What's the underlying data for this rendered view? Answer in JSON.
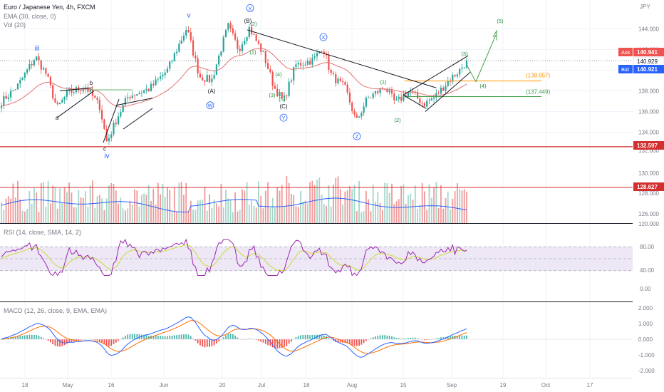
{
  "header": {
    "symbol": "Euro / Japanese Yen, 4h, FXCM",
    "ema_label": "EMA (30, close, 0)",
    "vol_label": "Vol (20)",
    "rsi_label": "RSI (14, close, SMA, 14, 2)",
    "macd_label": "MACD (12, 26, close, 9, EMA, EMA)"
  },
  "colors": {
    "up": "#26a69a",
    "down": "#ef5350",
    "ema": "#e57373",
    "volume_ma": "#2962ff",
    "rsi": "#9c27b0",
    "rsi_ma": "#cddc39",
    "macd": "#2962ff",
    "signal": "#ff6d00",
    "support": "#d32f2f",
    "trendline": "#131722",
    "orange_level": "#ff9800",
    "green_level": "#43a047",
    "wave_blue": "#2962ff",
    "wave_green": "#1b8a3a"
  },
  "chart_data": [
    {
      "type": "line",
      "name_id": "price",
      "yaxis_unit": "JPY",
      "ylim": [
        131.5,
        146.0
      ],
      "y_ticks": [
        134.0,
        136.0,
        138.0,
        140.0,
        142.0,
        144.0
      ],
      "x_ticks": [
        "18",
        "May",
        "16",
        "Jun",
        "20",
        "Jul",
        "18",
        "Aug",
        "15",
        "Sep",
        "19",
        "Oct",
        "17"
      ],
      "series_close": {
        "anchors": [
          [
            0,
            136.8
          ],
          [
            25,
            138.5
          ],
          [
            50,
            141.3
          ],
          [
            65,
            139.6
          ],
          [
            80,
            136.3
          ],
          [
            95,
            137.8
          ],
          [
            120,
            138.4
          ],
          [
            140,
            136.5
          ],
          [
            150,
            133.0
          ],
          [
            165,
            135.5
          ],
          [
            180,
            137.5
          ],
          [
            210,
            138.2
          ],
          [
            235,
            140.0
          ],
          [
            262,
            144.1
          ],
          [
            280,
            139.4
          ],
          [
            297,
            139.0
          ],
          [
            320,
            144.3
          ],
          [
            335,
            142.0
          ],
          [
            350,
            144.1
          ],
          [
            370,
            141.5
          ],
          [
            385,
            138.3
          ],
          [
            398,
            137.0
          ],
          [
            415,
            140.5
          ],
          [
            440,
            141.0
          ],
          [
            453,
            142.3
          ],
          [
            465,
            139.5
          ],
          [
            485,
            138.2
          ],
          [
            500,
            135.0
          ],
          [
            515,
            137.2
          ],
          [
            540,
            138.4
          ],
          [
            555,
            136.8
          ],
          [
            575,
            138.0
          ],
          [
            595,
            136.7
          ],
          [
            610,
            137.4
          ],
          [
            630,
            139.0
          ],
          [
            645,
            140.0
          ],
          [
            655,
            140.9
          ]
        ]
      },
      "ema": "EMA (30, close, 0)",
      "levels": [
        {
          "id": "last-price",
          "value": 140.929,
          "label": "140.929"
        },
        {
          "id": "ask",
          "value": 140.941,
          "label": "140.941",
          "tag": "Ask"
        },
        {
          "id": "bid",
          "value": 140.921,
          "label": "140.921",
          "tag": "Bid"
        },
        {
          "id": "support",
          "value": 132.597,
          "label": "132.597"
        },
        {
          "id": "orange",
          "value": 138.957,
          "label": "(138.957)"
        },
        {
          "id": "green",
          "value": 137.449,
          "label": "(137.449)"
        }
      ],
      "wave_labels": [
        {
          "text": "iii",
          "x": 52,
          "y": 141.9,
          "style": "blue"
        },
        {
          "text": "a",
          "x": 80,
          "y": 135.2,
          "style": "black"
        },
        {
          "text": "b",
          "x": 128,
          "y": 138.6,
          "style": "black"
        },
        {
          "text": "c",
          "x": 147,
          "y": 132.2,
          "style": "black"
        },
        {
          "text": "iv",
          "x": 150,
          "y": 131.5,
          "style": "blue"
        },
        {
          "text": "v",
          "x": 265,
          "y": 145.1,
          "style": "blue"
        },
        {
          "text": "(A)",
          "x": 297,
          "y": 137.8,
          "style": "black"
        },
        {
          "text": "W",
          "x": 295,
          "y": 136.4,
          "style": "blue-circle"
        },
        {
          "text": "X",
          "x": 351,
          "y": 145.8,
          "style": "blue-circle"
        },
        {
          "text": "(B)",
          "x": 348,
          "y": 144.6,
          "style": "black"
        },
        {
          "text": "(2)",
          "x": 356,
          "y": 144.3,
          "style": "green"
        },
        {
          "text": "(1)",
          "x": 355,
          "y": 141.6,
          "style": "green"
        },
        {
          "text": "(4)",
          "x": 391,
          "y": 139.4,
          "style": "green"
        },
        {
          "text": "(3)",
          "x": 382,
          "y": 137.4,
          "style": "green"
        },
        {
          "text": "(5)",
          "x": 396,
          "y": 137.0,
          "style": "green"
        },
        {
          "text": "(C)",
          "x": 398,
          "y": 136.3,
          "style": "black"
        },
        {
          "text": "Y",
          "x": 398,
          "y": 135.2,
          "style": "blue-circle"
        },
        {
          "text": "X",
          "x": 454,
          "y": 143.0,
          "style": "blue-circle"
        },
        {
          "text": "Z",
          "x": 501,
          "y": 133.4,
          "style": "blue-circle"
        },
        {
          "text": "(1)",
          "x": 538,
          "y": 138.7,
          "style": "green"
        },
        {
          "text": "(2)",
          "x": 558,
          "y": 135.0,
          "style": "green"
        },
        {
          "text": "(3)",
          "x": 652,
          "y": 141.4,
          "style": "green"
        },
        {
          "text": "(4)",
          "x": 678,
          "y": 138.3,
          "style": "green"
        },
        {
          "text": "(5)",
          "x": 702,
          "y": 144.6,
          "style": "green"
        }
      ]
    },
    {
      "type": "bar",
      "name_id": "volume",
      "y_ticks": [
        126.0,
        128.0,
        130.0
      ],
      "ylim": [
        125.0,
        131.0
      ],
      "level": {
        "value": 128.627,
        "label": "128.627"
      }
    },
    {
      "type": "line",
      "name_id": "rsi",
      "ylim": [
        0,
        100
      ],
      "y_ticks": [
        0.0,
        40.0,
        80.0
      ],
      "band": [
        30,
        70
      ]
    },
    {
      "type": "line",
      "name_id": "macd",
      "ylim": [
        -2.4,
        2.2
      ],
      "y_ticks": [
        -2.0,
        -1.0,
        0.0,
        1.0,
        2.0
      ]
    }
  ],
  "axis_labels": {
    "price_ticks": [
      "134.000",
      "136.000",
      "138.000",
      "140.000",
      "142.000",
      "144.000"
    ],
    "volume_ticks": [
      "126.000",
      "128.000",
      "130.000"
    ],
    "volume_top": "130.000",
    "gap_ticks": [
      "132.000",
      "120.000"
    ],
    "rsi_ticks": [
      "80.00",
      "40.00",
      "0.00"
    ],
    "macd_ticks": [
      "2.000",
      "1.000",
      "0.000",
      "-1.000",
      "-2.000"
    ]
  }
}
